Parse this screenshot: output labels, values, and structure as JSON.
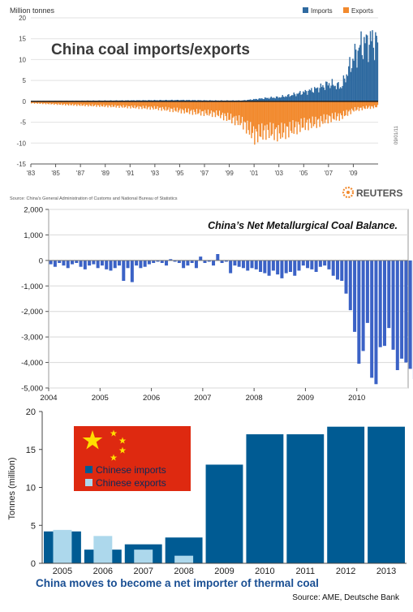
{
  "chart_data": [
    {
      "type": "bar",
      "title": "China coal imports/exports",
      "ylabel": "Million tonnes",
      "source": "Source: China's General Administration of Customs and National Bureau of Statistics",
      "brand": "REUTERS",
      "code": "09/01/11",
      "ylim": [
        -15,
        20
      ],
      "y_ticks": [
        "20",
        "15",
        "10",
        "5",
        "0",
        "-5",
        "-10",
        "-15"
      ],
      "x_ticks": [
        "'83",
        "'85",
        "'87",
        "'89",
        "'91",
        "'93",
        "'95",
        "'97",
        "'99",
        "'01",
        "'03",
        "'05",
        "'07",
        "'09"
      ],
      "x_range": [
        1983,
        2011
      ],
      "grid": true,
      "legend_position": "top-right",
      "series": [
        {
          "name": "Imports",
          "color": "#2f6aa0",
          "points": [
            [
              1983,
              0.1
            ],
            [
              1990,
              0.2
            ],
            [
              1995,
              0.3
            ],
            [
              1998,
              0.2
            ],
            [
              2000,
              0.2
            ],
            [
              2002,
              0.8
            ],
            [
              2003,
              1.0
            ],
            [
              2004,
              1.5
            ],
            [
              2005,
              2.2
            ],
            [
              2006,
              3.0
            ],
            [
              2007,
              4.2
            ],
            [
              2008,
              3.5
            ],
            [
              2009,
              10.5
            ],
            [
              2009.5,
              13.0
            ],
            [
              2010,
              14.0
            ],
            [
              2010.5,
              14.5
            ],
            [
              2011,
              13.8
            ]
          ]
        },
        {
          "name": "Exports",
          "color": "#f28a2e",
          "points": [
            [
              1983,
              -0.4
            ],
            [
              1986,
              -0.8
            ],
            [
              1990,
              -1.2
            ],
            [
              1993,
              -1.6
            ],
            [
              1996,
              -2.5
            ],
            [
              1998,
              -3.0
            ],
            [
              2000,
              -5.0
            ],
            [
              2001,
              -8.0
            ],
            [
              2002,
              -7.0
            ],
            [
              2003,
              -7.5
            ],
            [
              2004,
              -6.5
            ],
            [
              2005,
              -5.5
            ],
            [
              2006,
              -5.0
            ],
            [
              2007,
              -4.0
            ],
            [
              2008,
              -3.5
            ],
            [
              2009,
              -2.0
            ],
            [
              2010,
              -1.5
            ],
            [
              2011,
              -1.2
            ]
          ]
        }
      ]
    },
    {
      "type": "bar",
      "title": "China’s Net Metallurgical Coal Balance.",
      "ylim": [
        -5000,
        2000
      ],
      "y_ticks": [
        "2,000",
        "1,000",
        "0",
        "-1,000",
        "-2,000",
        "-3,000",
        "-4,000",
        "-5,000"
      ],
      "x_ticks": [
        "2004",
        "2005",
        "2006",
        "2007",
        "2008",
        "2009",
        "2010"
      ],
      "grid": true,
      "series": [
        {
          "color": "#3b62c6",
          "monthly_start": "2004-01",
          "values": [
            -150,
            -250,
            -100,
            -200,
            -300,
            -150,
            -100,
            -250,
            -350,
            -200,
            -150,
            -300,
            -200,
            -350,
            -400,
            -300,
            -200,
            -800,
            -300,
            -850,
            -200,
            -300,
            -250,
            -150,
            -100,
            -50,
            -100,
            -200,
            50,
            -50,
            -100,
            -300,
            -200,
            -100,
            -300,
            150,
            -100,
            -50,
            -200,
            250,
            -100,
            -50,
            -500,
            -200,
            -250,
            -300,
            -400,
            -300,
            -350,
            -450,
            -500,
            -600,
            -400,
            -550,
            -700,
            -500,
            -450,
            -600,
            -400,
            -200,
            -300,
            -350,
            -450,
            -250,
            -200,
            -350,
            -600,
            -750,
            -800,
            -1300,
            -1950,
            -2800,
            -4050,
            -3550,
            -2450,
            -4600,
            -4850,
            -3400,
            -3350,
            -2650,
            -3500,
            -4300,
            -3850,
            -4000,
            -4250,
            -4650,
            -3700,
            -3550,
            -3600,
            -3450
          ]
        }
      ]
    },
    {
      "type": "bar",
      "title": "China moves to become a net importer of thermal coal",
      "ylabel": "Tonnes (million)",
      "source": "Source: AME, Deutsche Bank",
      "ylim": [
        0,
        20
      ],
      "y_ticks": [
        "20",
        "15",
        "10",
        "5",
        "0"
      ],
      "categories": [
        "2005",
        "2006",
        "2007",
        "2008",
        "2009",
        "2010",
        "2011",
        "2012",
        "2013"
      ],
      "legend_position": "top-left",
      "series": [
        {
          "name": "Chinese imports",
          "color": "#005b93",
          "values": [
            4.2,
            1.8,
            2.5,
            3.4,
            13.0,
            17.0,
            17.0,
            18.0,
            18.0
          ]
        },
        {
          "name": "Chinese exports",
          "color": "#add8ec",
          "values": [
            4.4,
            3.6,
            1.8,
            1.0,
            0,
            0,
            0,
            0,
            0
          ]
        }
      ]
    }
  ]
}
